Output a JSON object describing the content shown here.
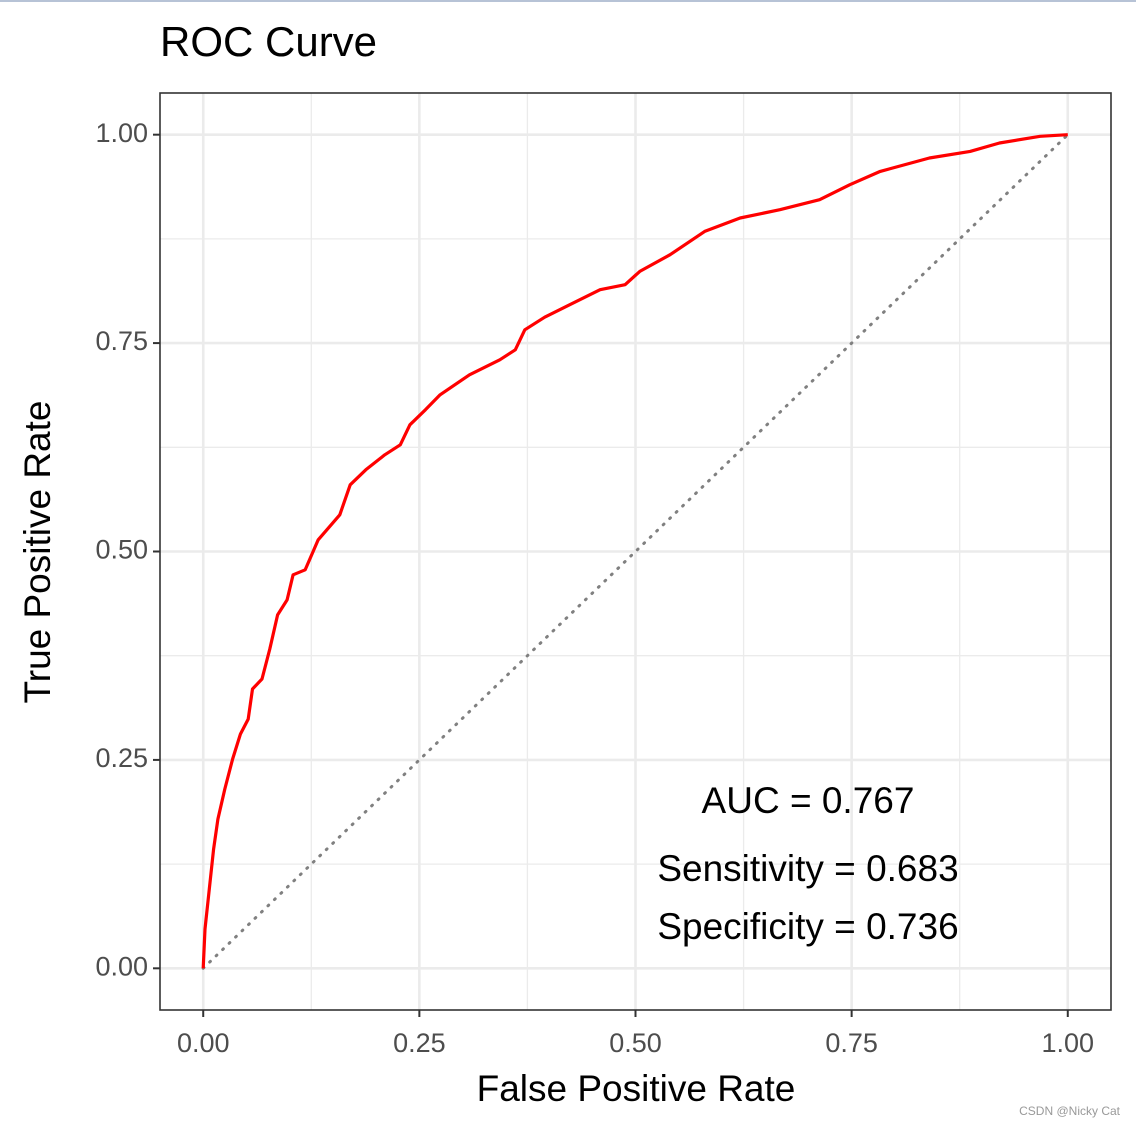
{
  "chart_data": {
    "type": "line",
    "title": "ROC Curve",
    "x_label": "False Positive Rate",
    "y_label": "True Positive Rate",
    "xlim": [
      -0.05,
      1.05
    ],
    "ylim": [
      -0.05,
      1.05
    ],
    "xticks": [
      {
        "value": 0,
        "label": "0.00"
      },
      {
        "value": 0.25,
        "label": "0.25"
      },
      {
        "value": 0.5,
        "label": "0.50"
      },
      {
        "value": 0.75,
        "label": "0.75"
      },
      {
        "value": 1,
        "label": "1.00"
      }
    ],
    "yticks": [
      {
        "value": 0,
        "label": "0.00"
      },
      {
        "value": 0.25,
        "label": "0.25"
      },
      {
        "value": 0.5,
        "label": "0.50"
      },
      {
        "value": 0.75,
        "label": "0.75"
      },
      {
        "value": 1,
        "label": "1.00"
      }
    ],
    "minor_ticks": [
      0.125,
      0.375,
      0.625,
      0.875
    ],
    "grid": true,
    "series": [
      {
        "color": "#ff0000",
        "x": [
          0,
          0.002,
          0.007,
          0.012,
          0.017,
          0.025,
          0.034,
          0.043,
          0.052,
          0.057,
          0.068,
          0.077,
          0.086,
          0.097,
          0.104,
          0.118,
          0.133,
          0.158,
          0.17,
          0.188,
          0.21,
          0.228,
          0.239,
          0.257,
          0.274,
          0.308,
          0.343,
          0.361,
          0.372,
          0.395,
          0.424,
          0.459,
          0.488,
          0.505,
          0.54,
          0.58,
          0.621,
          0.667,
          0.713,
          0.748,
          0.783,
          0.84,
          0.887,
          0.921,
          0.968,
          1
        ],
        "values": [
          0,
          0.047,
          0.095,
          0.143,
          0.179,
          0.215,
          0.251,
          0.281,
          0.299,
          0.335,
          0.347,
          0.383,
          0.424,
          0.442,
          0.472,
          0.478,
          0.514,
          0.544,
          0.58,
          0.598,
          0.616,
          0.628,
          0.652,
          0.67,
          0.688,
          0.712,
          0.73,
          0.742,
          0.766,
          0.781,
          0.796,
          0.814,
          0.82,
          0.836,
          0.856,
          0.884,
          0.9,
          0.91,
          0.922,
          0.94,
          0.956,
          0.972,
          0.98,
          0.99,
          0.998,
          1
        ]
      },
      {
        "color": "#808080",
        "dotted": true,
        "x": [
          0,
          1
        ],
        "values": [
          0,
          1
        ]
      }
    ],
    "annotations": [
      "AUC = 0.767",
      "Sensitivity = 0.683",
      "Specificity = 0.736"
    ],
    "watermark": "CSDN @Nicky Cat"
  }
}
